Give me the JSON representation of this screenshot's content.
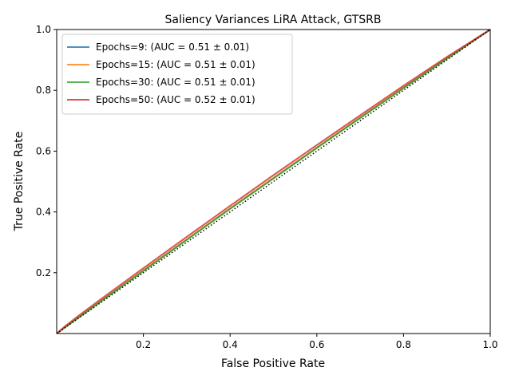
{
  "chart_data": {
    "type": "line",
    "title": "Saliency Variances LiRA Attack, GTSRB",
    "xlabel": "False Positive Rate",
    "ylabel": "True Positive Rate",
    "xlim": [
      0,
      1
    ],
    "ylim": [
      0,
      1
    ],
    "xticks": [
      0.2,
      0.4,
      0.6,
      0.8,
      1.0
    ],
    "xtick_labels": [
      "0.2",
      "0.4",
      "0.6",
      "0.8",
      "1.0"
    ],
    "yticks": [
      0.2,
      0.4,
      0.6,
      0.8,
      1.0
    ],
    "ytick_labels": [
      "0.2",
      "0.4",
      "0.6",
      "0.8",
      "1.0"
    ],
    "grid": false,
    "legend_position": "top-left",
    "x": [
      0.0,
      0.02,
      0.05,
      0.1,
      0.2,
      0.3,
      0.4,
      0.5,
      0.6,
      0.7,
      0.8,
      0.9,
      1.0
    ],
    "series": [
      {
        "name": "Epochs=9: (AUC = 0.51 ± 0.01)",
        "color": "#1f77b4",
        "values": [
          0.0,
          0.021,
          0.052,
          0.104,
          0.207,
          0.309,
          0.411,
          0.511,
          0.611,
          0.71,
          0.808,
          0.905,
          1.0
        ]
      },
      {
        "name": "Epochs=15: (AUC = 0.51 ± 0.01)",
        "color": "#ff7f0e",
        "values": [
          0.0,
          0.022,
          0.053,
          0.105,
          0.208,
          0.31,
          0.412,
          0.512,
          0.612,
          0.711,
          0.809,
          0.906,
          1.0
        ]
      },
      {
        "name": "Epochs=30: (AUC = 0.51 ± 0.01)",
        "color": "#2ca02c",
        "values": [
          0.0,
          0.021,
          0.052,
          0.104,
          0.206,
          0.308,
          0.41,
          0.51,
          0.61,
          0.709,
          0.807,
          0.904,
          1.0
        ]
      },
      {
        "name": "Epochs=50: (AUC = 0.52 ± 0.01)",
        "color": "#d62728",
        "values": [
          0.0,
          0.025,
          0.058,
          0.111,
          0.215,
          0.318,
          0.42,
          0.521,
          0.62,
          0.718,
          0.815,
          0.91,
          1.0
        ]
      }
    ],
    "reference_line": {
      "x": [
        0,
        1
      ],
      "y": [
        0,
        1
      ],
      "color": "#000000",
      "style": "dotted"
    }
  }
}
